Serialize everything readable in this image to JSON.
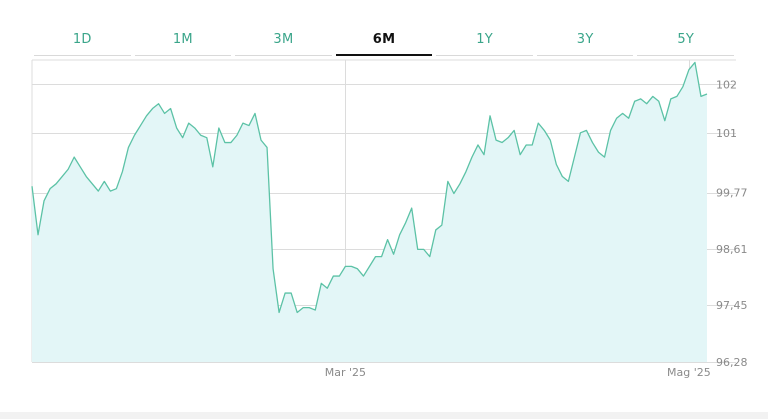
{
  "tabs": [
    {
      "label": "1D"
    },
    {
      "label": "1M"
    },
    {
      "label": "3M"
    },
    {
      "label": "6M",
      "active": true
    },
    {
      "label": "1Y"
    },
    {
      "label": "3Y"
    },
    {
      "label": "5Y"
    }
  ],
  "colors": {
    "tab_text": "#3aa58a",
    "tab_active_text": "#111111",
    "line": "#5cc2a6",
    "fill": "#e3f6f7",
    "grid": "#dcdcdc",
    "tick_label": "#8a8a8a"
  },
  "chart_data": {
    "type": "area",
    "ylim": [
      96.28,
      102.5
    ],
    "yticks": [
      96.28,
      97.45,
      98.61,
      99.77,
      101,
      102
    ],
    "ytick_labels": [
      "96,28",
      "97,45",
      "98,61",
      "99,77",
      "101",
      "102"
    ],
    "xticks": [
      {
        "index": 52,
        "label": "Mar '25"
      },
      {
        "index": 109,
        "label": "Mag '25"
      }
    ],
    "grid": true,
    "values": [
      99.9,
      98.9,
      99.6,
      99.85,
      99.95,
      100.1,
      100.25,
      100.5,
      100.3,
      100.1,
      99.95,
      99.8,
      100.0,
      99.8,
      99.85,
      100.2,
      100.7,
      100.95,
      101.15,
      101.35,
      101.5,
      101.6,
      101.4,
      101.5,
      101.1,
      100.9,
      101.2,
      101.1,
      100.95,
      100.9,
      100.3,
      101.1,
      100.8,
      100.8,
      100.95,
      101.2,
      101.15,
      101.4,
      100.85,
      100.7,
      98.2,
      97.3,
      97.7,
      97.7,
      97.3,
      97.4,
      97.4,
      97.35,
      97.9,
      97.8,
      98.05,
      98.05,
      98.25,
      98.25,
      98.2,
      98.05,
      98.25,
      98.45,
      98.45,
      98.8,
      98.5,
      98.9,
      99.15,
      99.45,
      98.6,
      98.6,
      98.45,
      99.0,
      99.1,
      100.0,
      99.75,
      99.95,
      100.2,
      100.5,
      100.75,
      100.55,
      101.35,
      100.85,
      100.8,
      100.9,
      101.05,
      100.55,
      100.75,
      100.75,
      101.2,
      101.05,
      100.85,
      100.35,
      100.1,
      100.0,
      100.5,
      101.0,
      101.05,
      100.8,
      100.6,
      100.5,
      101.05,
      101.3,
      101.4,
      101.3,
      101.65,
      101.7,
      101.6,
      101.75,
      101.65,
      101.25,
      101.7,
      101.75,
      101.95,
      102.3,
      102.45,
      101.75,
      101.8
    ]
  }
}
